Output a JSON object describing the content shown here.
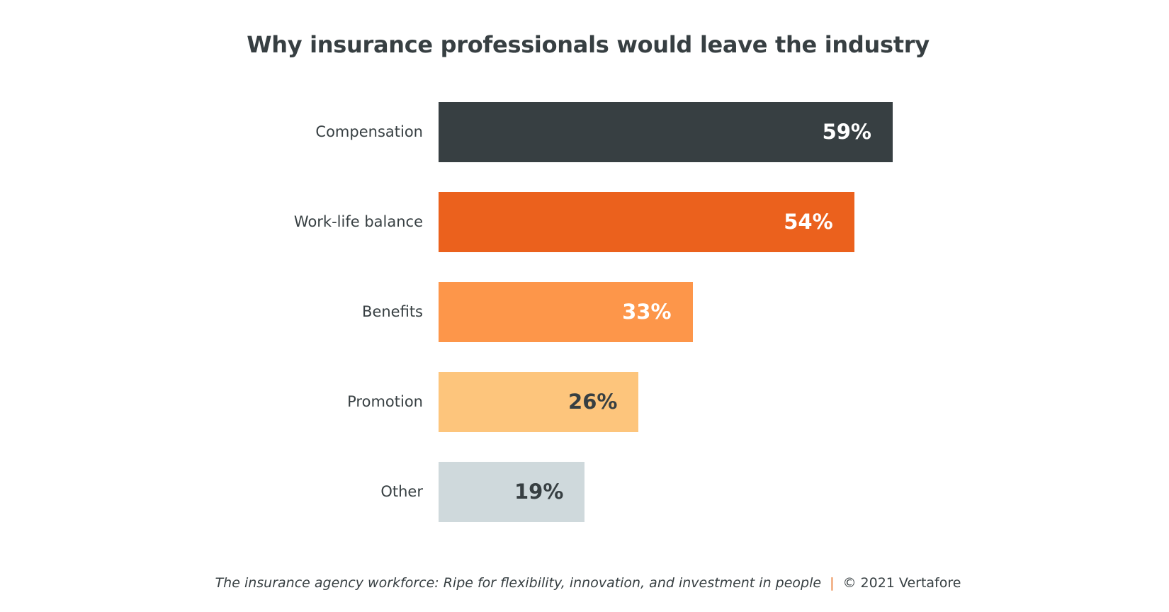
{
  "chart_data": {
    "type": "bar",
    "orientation": "horizontal",
    "title": "Why insurance professionals would leave the industry",
    "categories": [
      "Compensation",
      "Work-life balance",
      "Benefits",
      "Promotion",
      "Other"
    ],
    "values": [
      59,
      54,
      33,
      26,
      19
    ],
    "value_labels": [
      "59%",
      "54%",
      "33%",
      "26%",
      "19%"
    ],
    "unit": "%",
    "colors": [
      "#373f42",
      "#eb611d",
      "#fd964a",
      "#fdc57c",
      "#cfd9dc"
    ],
    "label_colors": [
      "#ffffff",
      "#ffffff",
      "#ffffff",
      "#373f42",
      "#373f42"
    ],
    "xlim": [
      0,
      59
    ],
    "grid": false,
    "legend": "none"
  },
  "footer": {
    "source": "The insurance agency workforce: Ripe for flexibility, innovation, and investment in people",
    "separator": "|",
    "copyright": "© 2021 Vertafore"
  }
}
